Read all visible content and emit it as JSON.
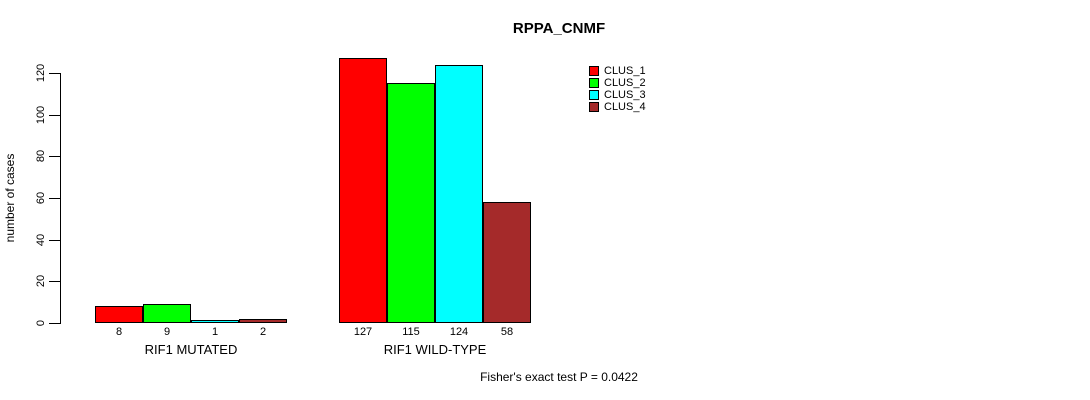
{
  "chart_data": {
    "type": "bar",
    "title": "RPPA_CNMF",
    "ylabel": "number of cases",
    "xlabel": "",
    "ylim": [
      0,
      120
    ],
    "yticks": [
      0,
      20,
      40,
      60,
      80,
      100,
      120
    ],
    "categories": [
      "RIF1 MUTATED",
      "RIF1 WILD-TYPE"
    ],
    "series": [
      {
        "name": "CLUS_1",
        "color": "#FF0000",
        "values": [
          8,
          127
        ]
      },
      {
        "name": "CLUS_2",
        "color": "#00FF00",
        "values": [
          9,
          115
        ]
      },
      {
        "name": "CLUS_3",
        "color": "#00FFFF",
        "values": [
          1,
          124
        ]
      },
      {
        "name": "CLUS_4",
        "color": "#A52A2A",
        "values": [
          2,
          58
        ]
      }
    ],
    "bar_value_labels": [
      [
        "8",
        "9",
        "1",
        "2"
      ],
      [
        "127",
        "115",
        "124",
        "58"
      ]
    ],
    "legend": {
      "position": "top-right",
      "entries": [
        "CLUS_1",
        "CLUS_2",
        "CLUS_3",
        "CLUS_4"
      ]
    },
    "grid": false,
    "annotation": "Fisher's exact test P = 0.0422"
  },
  "colors": {
    "background": "#FFFFFF",
    "axis": "#000000",
    "text": "#000000"
  }
}
